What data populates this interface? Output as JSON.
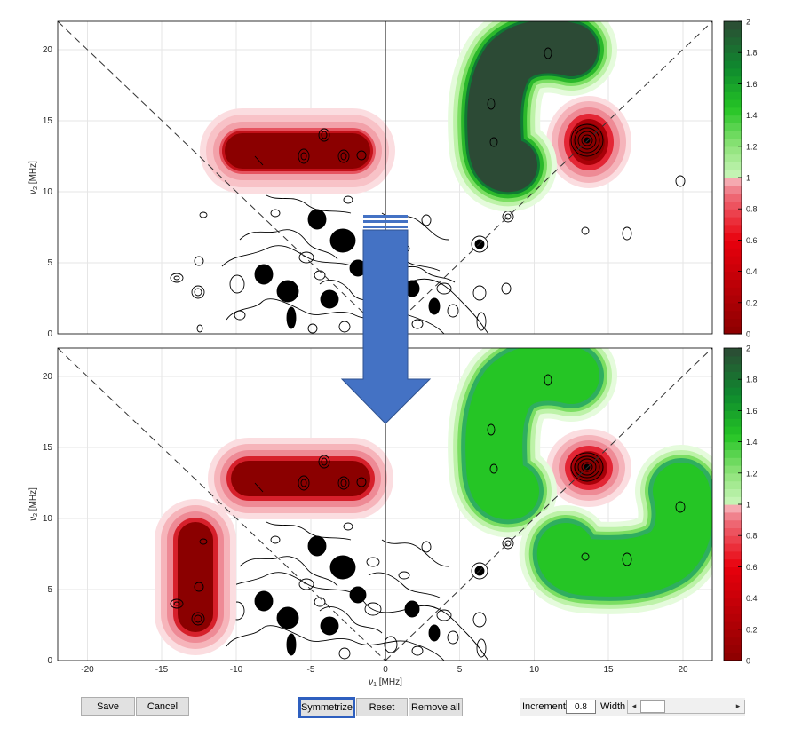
{
  "plot_top": {
    "xlim": [
      -22,
      22
    ],
    "ylim": [
      0,
      22
    ],
    "ticks_y": [
      "0",
      "5",
      "10",
      "15",
      "20"
    ],
    "ylabel_sym": "ν",
    "ylabel_sub": "2",
    "ylabel_unit": " [MHz]"
  },
  "plot_bottom": {
    "xlim": [
      -22,
      22
    ],
    "ylim": [
      0,
      22
    ],
    "ticks_x": [
      "-20",
      "-15",
      "-10",
      "-5",
      "0",
      "5",
      "10",
      "15",
      "20"
    ],
    "ticks_y": [
      "0",
      "5",
      "10",
      "15",
      "20"
    ],
    "xlabel_sym": "ν",
    "xlabel_sub": "1",
    "xlabel_unit": " [MHz]",
    "ylabel_sym": "ν",
    "ylabel_sub": "2",
    "ylabel_unit": " [MHz]"
  },
  "colorbar": {
    "range": [
      0,
      2
    ],
    "ticks": [
      "0",
      "0.2",
      "0.4",
      "0.6",
      "0.8",
      "1",
      "1.2",
      "1.4",
      "1.6",
      "1.8",
      "2"
    ],
    "colors": {
      "dark_red": "#8b0000",
      "red": "#e8000c",
      "light_red": "#f6b4ba",
      "white": "#ffffff",
      "light_green": "#c7f5b8",
      "green": "#25c525",
      "dark_green": "#2c4a35",
      "arrow_blue": "#4472c4"
    }
  },
  "buttons": {
    "save": "Save",
    "cancel": "Cancel",
    "symmetrize": "Symmetrize",
    "reset": "Reset",
    "remove_all": "Remove all"
  },
  "controls": {
    "increment_label": "Increment",
    "increment_value": "0.8",
    "width_label": "Width",
    "left_arrow": "◂",
    "right_arrow": "▸"
  }
}
